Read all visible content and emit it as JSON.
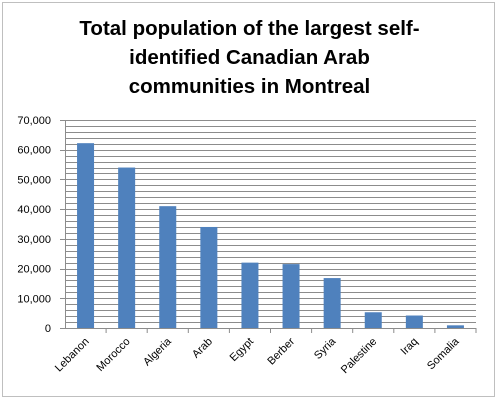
{
  "chart_data": {
    "type": "bar",
    "title_lines": [
      "Total population of the largest self-",
      "identified Canadian Arab",
      "communities in Montreal"
    ],
    "categories": [
      "Lebanon",
      "Morocco",
      "Algeria",
      "Arab",
      "Egypt",
      "Berber",
      "Syria",
      "Palestine",
      "Iraq",
      "Somalia"
    ],
    "values": [
      62200,
      54000,
      41000,
      34000,
      22000,
      21500,
      16800,
      5300,
      4200,
      900
    ],
    "ylim": [
      0,
      70000
    ],
    "yticks": [
      "0",
      "10,000",
      "20,000",
      "30,000",
      "40,000",
      "50,000",
      "60,000",
      "70,000"
    ],
    "grid": true,
    "bar_color": "#4f81bd",
    "grid_color": "#8c8c8c"
  }
}
